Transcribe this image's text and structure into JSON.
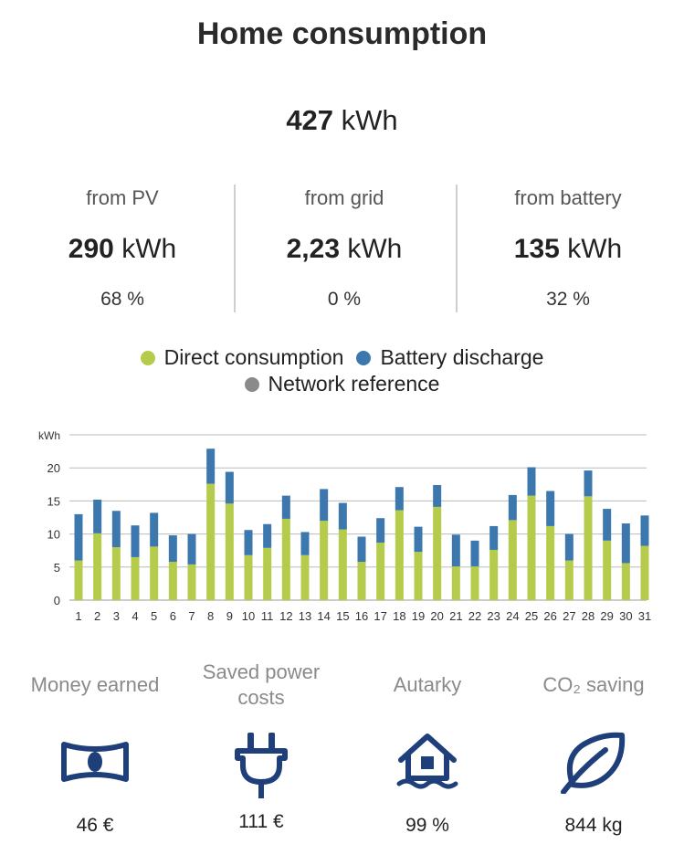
{
  "header": {
    "title": "Home consumption"
  },
  "total": {
    "value": "427",
    "unit": "kWh"
  },
  "sources": [
    {
      "label": "from PV",
      "value": "290",
      "unit": "kWh",
      "percent": "68 %"
    },
    {
      "label": "from grid",
      "value": "2,23",
      "unit": "kWh",
      "percent": "0 %"
    },
    {
      "label": "from battery",
      "value": "135",
      "unit": "kWh",
      "percent": "32 %"
    }
  ],
  "legend": {
    "direct": {
      "label": "Direct consumption",
      "color": "#b5cb4b"
    },
    "battery": {
      "label": "Battery discharge",
      "color": "#3c78ad"
    },
    "network": {
      "label": "Network reference",
      "color": "#8a8a8a"
    }
  },
  "chart_data": {
    "type": "bar",
    "stacked": true,
    "ylabel": "kWh",
    "ylim": [
      0,
      25
    ],
    "yticks": [
      0,
      5,
      10,
      15,
      20
    ],
    "grid": true,
    "categories": [
      "1",
      "2",
      "3",
      "4",
      "5",
      "6",
      "7",
      "8",
      "9",
      "10",
      "11",
      "12",
      "13",
      "14",
      "15",
      "16",
      "17",
      "18",
      "19",
      "20",
      "21",
      "22",
      "23",
      "24",
      "25",
      "26",
      "27",
      "28",
      "29",
      "30",
      "31"
    ],
    "series": [
      {
        "name": "Direct consumption",
        "color": "#b5cb4b",
        "values": [
          6.0,
          10.1,
          8.0,
          6.5,
          8.1,
          5.8,
          5.4,
          17.6,
          14.6,
          6.8,
          7.9,
          12.3,
          6.8,
          12.0,
          10.7,
          5.8,
          8.7,
          13.6,
          7.3,
          14.1,
          5.1,
          5.1,
          7.6,
          12.1,
          15.8,
          11.2,
          6.0,
          15.7,
          9.0,
          5.6,
          8.2
        ]
      },
      {
        "name": "Battery discharge",
        "color": "#3c78ad",
        "values": [
          7.0,
          5.1,
          5.5,
          4.8,
          5.1,
          4.0,
          4.6,
          5.3,
          4.8,
          3.8,
          3.6,
          3.5,
          3.5,
          4.8,
          4.0,
          3.8,
          3.7,
          3.5,
          3.8,
          3.3,
          4.8,
          3.9,
          3.6,
          3.8,
          4.3,
          5.3,
          4.0,
          3.9,
          4.8,
          6.0,
          4.6
        ]
      }
    ]
  },
  "tiles": [
    {
      "title": "Money earned",
      "icon": "banknote-icon",
      "value": "46 €"
    },
    {
      "title": "Saved power costs",
      "icon": "plug-icon",
      "value": "111 €"
    },
    {
      "title": "Autarky",
      "icon": "house-icon",
      "value": "99 %"
    },
    {
      "title": "CO₂ saving",
      "icon": "leaf-icon",
      "value": "844 kg"
    }
  ],
  "colors": {
    "icon": "#1f3f7a"
  }
}
